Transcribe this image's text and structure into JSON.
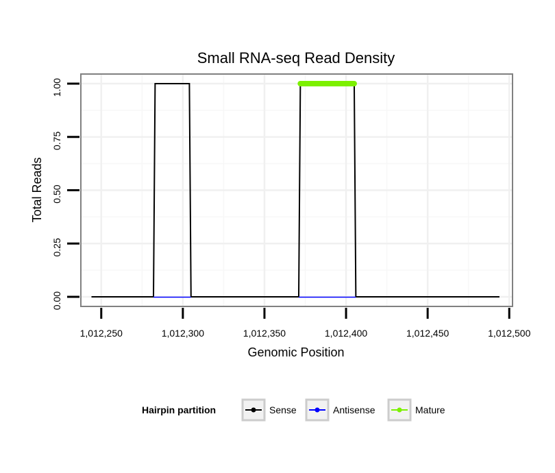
{
  "chart_data": {
    "type": "line",
    "title": "Small RNA-seq Read Density",
    "xlabel": "Genomic Position",
    "ylabel": "Total Reads",
    "xlim": [
      1012237.5,
      1012502
    ],
    "ylim": [
      -0.045,
      1.045
    ],
    "x_ticks": [
      1012250,
      1012300,
      1012350,
      1012400,
      1012450,
      1012500
    ],
    "x_tick_labels": [
      "1,012,250",
      "1,012,300",
      "1,012,350",
      "1,012,400",
      "1,012,450",
      "1,012,500"
    ],
    "y_ticks": [
      0,
      0.25,
      0.5,
      0.75,
      1.0
    ],
    "y_tick_labels": [
      "0.00",
      "0.25",
      "0.50",
      "0.75",
      "1.00"
    ],
    "grid": true,
    "series": [
      {
        "name": "Sense",
        "color": "#000000",
        "x": [
          1012244,
          1012282,
          1012283,
          1012304,
          1012305,
          1012371,
          1012372,
          1012405,
          1012406,
          1012494
        ],
        "y": [
          0,
          0,
          1,
          1,
          0,
          0,
          1,
          1,
          0,
          0
        ]
      },
      {
        "name": "Antisense",
        "color": "#0000ff",
        "x": [
          1012282,
          1012305,
          1012371,
          1012406
        ],
        "y": [
          0,
          0,
          0,
          0
        ],
        "segments": [
          [
            0,
            1
          ],
          [
            2,
            3
          ]
        ]
      },
      {
        "name": "Mature",
        "color": "#7cf000",
        "x": [
          1012372,
          1012405
        ],
        "y": [
          1,
          1
        ]
      }
    ],
    "legend": {
      "title": "Hairpin partition",
      "position": "bottom",
      "entries": [
        {
          "label": "Sense",
          "color": "#000000"
        },
        {
          "label": "Antisense",
          "color": "#0000ff"
        },
        {
          "label": "Mature",
          "color": "#7cf000"
        }
      ]
    }
  }
}
